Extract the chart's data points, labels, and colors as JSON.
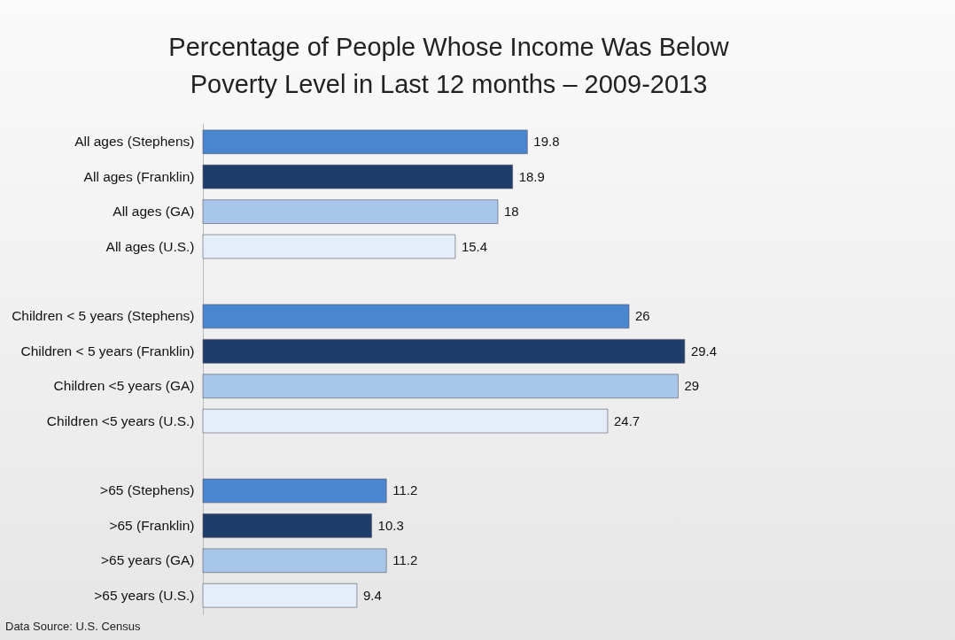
{
  "chart_data": {
    "type": "bar",
    "orientation": "horizontal",
    "title": "Percentage of People Whose Income Was Below Poverty Level in Last 12 months – 2009-2013",
    "categories": [
      "All ages (Stephens)",
      "All ages (Franklin)",
      "All ages (GA)",
      "All ages (U.S.)",
      null,
      "Children < 5 years (Stephens)",
      "Children < 5 years (Franklin)",
      "Children <5 years (GA)",
      "Children <5 years (U.S.)",
      null,
      ">65 (Stephens)",
      ">65 (Franklin)",
      ">65 years (GA)",
      ">65 years (U.S.)"
    ],
    "values": [
      19.8,
      18.9,
      18,
      15.4,
      null,
      26,
      29.4,
      29,
      24.7,
      null,
      11.2,
      10.3,
      11.2,
      9.4
    ],
    "colors": [
      "#4a85d0",
      "#1f3d6b",
      "#a8c6ea",
      "#e4eef9",
      "#ffffff",
      "#4a85d0",
      "#1f3d6b",
      "#a8c6ea",
      "#e4eef9",
      "#ffffff",
      "#4a85d0",
      "#1f3d6b",
      "#a8c6ea",
      "#e4eef9"
    ],
    "data_labels": true,
    "tick_labels": "y",
    "annotations": [
      "Data Source:  U.S. Census"
    ]
  }
}
